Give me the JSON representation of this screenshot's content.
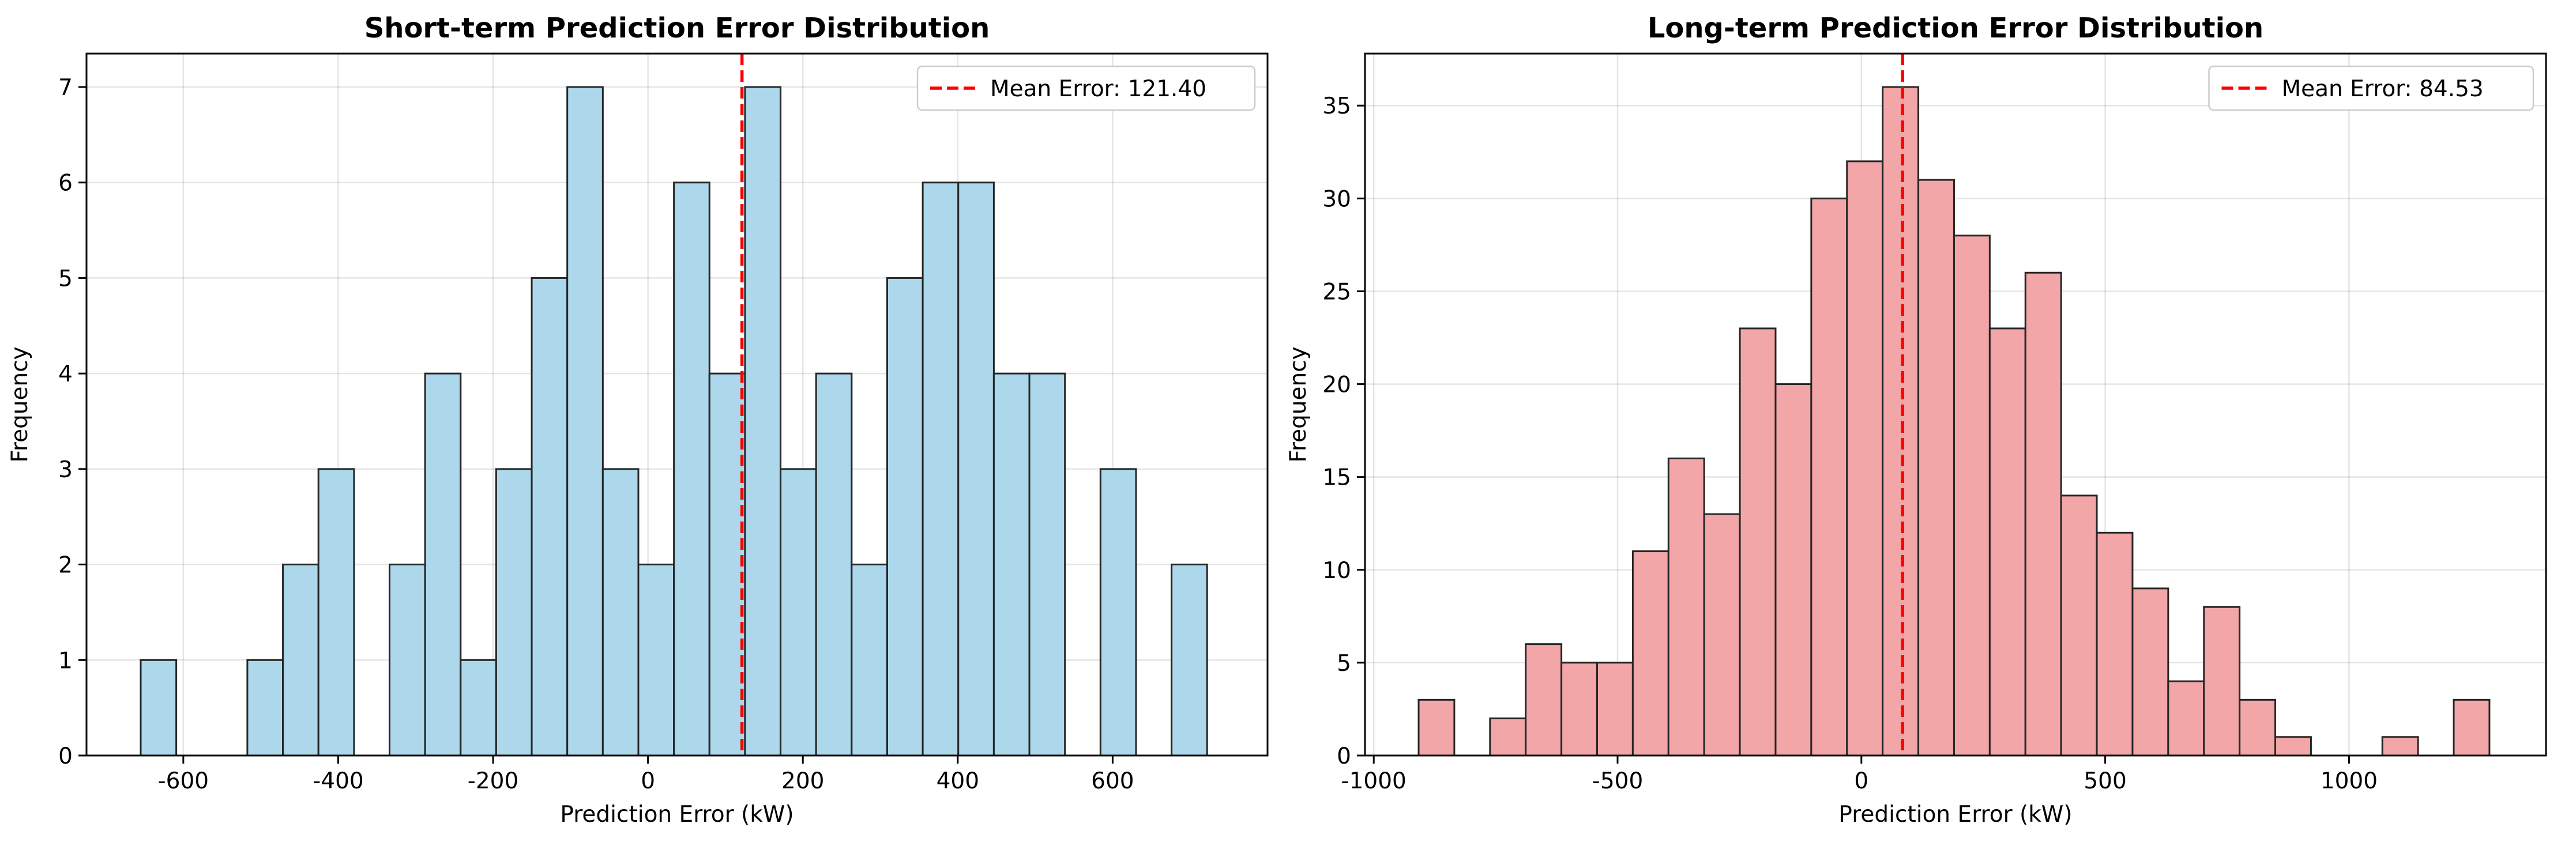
{
  "chart_data": [
    {
      "type": "histogram",
      "title": "Short-term Prediction Error Distribution",
      "xlabel": "Prediction Error (kW)",
      "ylabel": "Frequency",
      "xlim": [
        -725,
        800
      ],
      "ylim": [
        0,
        7.35
      ],
      "xticks": [
        -600,
        -400,
        -200,
        0,
        200,
        400,
        600
      ],
      "xtick_labels": [
        "-600",
        "-400",
        "-200",
        "0",
        "200",
        "400",
        "600"
      ],
      "yticks": [
        0,
        1,
        2,
        3,
        4,
        5,
        6,
        7
      ],
      "ytick_labels": [
        "0",
        "1",
        "2",
        "3",
        "4",
        "5",
        "6",
        "7"
      ],
      "bin_start": -655,
      "bin_width": 45.9,
      "counts": [
        1,
        0,
        0,
        1,
        2,
        3,
        0,
        2,
        4,
        1,
        3,
        5,
        7,
        3,
        2,
        6,
        4,
        7,
        3,
        4,
        2,
        5,
        6,
        6,
        4,
        4,
        0,
        3,
        0,
        2
      ],
      "mean_error": 121.4,
      "legend_label": "Mean Error: 121.40",
      "legend_position": "upper right",
      "bar_color": "#add8ec",
      "mean_line_color": "#ff0000",
      "grid": true
    },
    {
      "type": "histogram",
      "title": "Long-term Prediction Error Distribution",
      "xlabel": "Prediction Error (kW)",
      "ylabel": "Frequency",
      "xlim": [
        -1018,
        1404
      ],
      "ylim": [
        0,
        37.8
      ],
      "xticks": [
        -1000,
        -500,
        0,
        500,
        1000
      ],
      "xtick_labels": [
        "-1000",
        "-500",
        "0",
        "500",
        "1000"
      ],
      "yticks": [
        0,
        5,
        10,
        15,
        20,
        25,
        30,
        35
      ],
      "ytick_labels": [
        "0",
        "5",
        "10",
        "15",
        "20",
        "25",
        "30",
        "35"
      ],
      "bin_start": -908,
      "bin_width": 73.2,
      "counts": [
        3,
        0,
        2,
        6,
        5,
        5,
        11,
        16,
        13,
        23,
        20,
        30,
        32,
        36,
        31,
        28,
        23,
        26,
        14,
        12,
        9,
        4,
        8,
        3,
        1,
        0,
        0,
        1,
        0,
        3
      ],
      "mean_error": 84.53,
      "legend_label": "Mean Error: 84.53",
      "legend_position": "upper right",
      "bar_color": "#f2a6a8",
      "mean_line_color": "#ff0000",
      "grid": true
    }
  ]
}
